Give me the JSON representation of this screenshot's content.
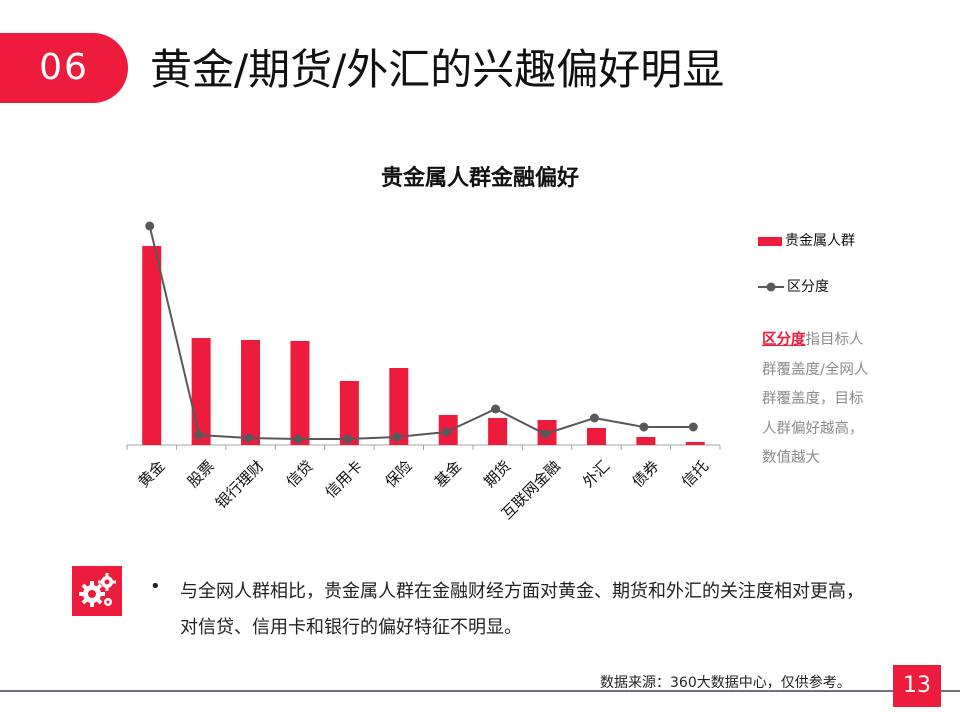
{
  "header": {
    "number": "06",
    "title": "黄金/期货/外汇的兴趣偏好明显"
  },
  "chart_data": {
    "type": "bar+line",
    "title": "贵金属人群金融偏好",
    "categories": [
      "黄金",
      "股票",
      "银行理财",
      "信贷",
      "信用卡",
      "保险",
      "基金",
      "期货",
      "互联网金融",
      "外汇",
      "债券",
      "信托"
    ],
    "series": [
      {
        "name": "贵金属人群",
        "type": "bar",
        "color": "#ee1c3c",
        "values": [
          199,
          107,
          105,
          104,
          64,
          77,
          30,
          27,
          25,
          17,
          8,
          3
        ]
      },
      {
        "name": "区分度",
        "type": "line",
        "color": "#595959",
        "values": [
          219,
          10,
          7,
          6,
          6,
          8,
          13,
          36,
          11,
          27,
          18,
          18
        ]
      }
    ],
    "yaxis": "hidden (relative values)",
    "legend": "right",
    "grid": false
  },
  "note": {
    "highlight": "区分度",
    "text": "指目标人群覆盖度/全网人群覆盖度，目标人群偏好越高，数值越大"
  },
  "icons": {
    "gear": "gears-icon"
  },
  "bullet": {
    "mark": "•",
    "text": "与全网人群相比，贵金属人群在金融财经方面对黄金、期货和外汇的关注度相对更高，对信贷、信用卡和银行的偏好特征不明显。"
  },
  "footer": {
    "source": "数据来源：360大数据中心，仅供参考。",
    "page": "13"
  }
}
